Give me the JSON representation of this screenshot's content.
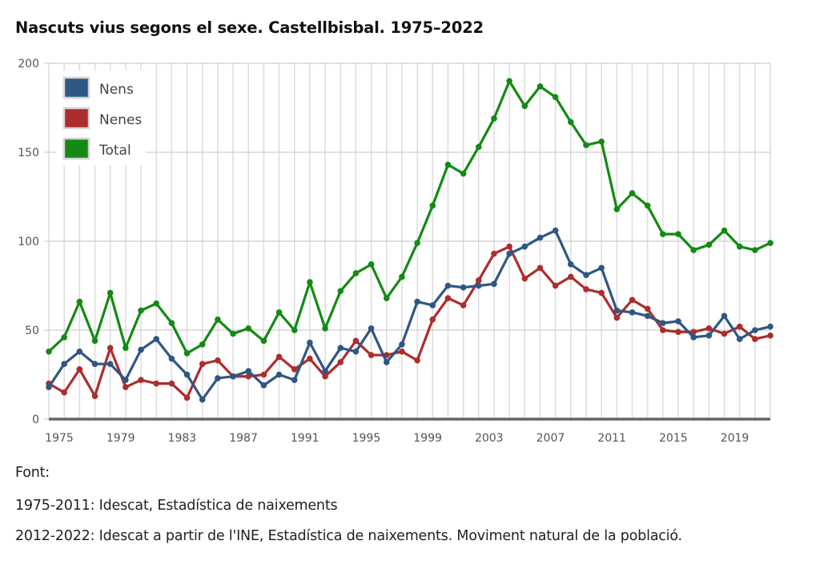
{
  "title": "Nascuts vius segons el sexe. Castellbisbal. 1975–2022",
  "footer": {
    "label": "Font:",
    "source_1": "1975-2011: Idescat, Estadística de naixements",
    "source_2": "2012-2022: Idescat a partir de l'INE, Estadística de naixements. Moviment natural de la població."
  },
  "chart_data": {
    "type": "line",
    "title": "Nascuts vius segons el sexe. Castellbisbal. 1975–2022",
    "xlabel": "",
    "ylabel": "",
    "ylim": [
      0,
      200
    ],
    "yticks": [
      0,
      50,
      100,
      150,
      200
    ],
    "xticks": [
      "1975",
      "1979",
      "1983",
      "1987",
      "1991",
      "1995",
      "1999",
      "2003",
      "2007",
      "2011",
      "2015",
      "2019"
    ],
    "grid": true,
    "legend_position": "top-left",
    "x": [
      1975,
      1976,
      1977,
      1978,
      1979,
      1980,
      1981,
      1982,
      1983,
      1984,
      1985,
      1986,
      1987,
      1988,
      1989,
      1990,
      1991,
      1992,
      1993,
      1994,
      1995,
      1996,
      1997,
      1998,
      1999,
      2000,
      2001,
      2002,
      2003,
      2004,
      2005,
      2006,
      2007,
      2008,
      2009,
      2010,
      2011,
      2012,
      2013,
      2014,
      2015,
      2016,
      2017,
      2018,
      2019,
      2020,
      2021,
      2022
    ],
    "series": [
      {
        "name": "Nens",
        "color": "#2f5784",
        "values": [
          18,
          31,
          38,
          31,
          31,
          22,
          39,
          45,
          34,
          25,
          11,
          23,
          24,
          27,
          19,
          25,
          22,
          43,
          27,
          40,
          38,
          51,
          32,
          42,
          66,
          64,
          75,
          74,
          75,
          76,
          93,
          97,
          102,
          106,
          87,
          81,
          85,
          61,
          60,
          58,
          54,
          55,
          46,
          47,
          58,
          45,
          50,
          52
        ]
      },
      {
        "name": "Nenes",
        "color": "#ad2d2d",
        "values": [
          20,
          15,
          28,
          13,
          40,
          18,
          22,
          20,
          20,
          12,
          31,
          33,
          24,
          24,
          25,
          35,
          28,
          34,
          24,
          32,
          44,
          36,
          36,
          38,
          33,
          56,
          68,
          64,
          78,
          93,
          97,
          79,
          85,
          75,
          80,
          73,
          71,
          57,
          67,
          62,
          50,
          49,
          49,
          51,
          48,
          52,
          45,
          47
        ]
      },
      {
        "name": "Total",
        "color": "#138a13",
        "values": [
          38,
          46,
          66,
          44,
          71,
          40,
          61,
          65,
          54,
          37,
          42,
          56,
          48,
          51,
          44,
          60,
          50,
          77,
          51,
          72,
          82,
          87,
          68,
          80,
          99,
          120,
          143,
          138,
          153,
          169,
          190,
          176,
          187,
          181,
          167,
          154,
          156,
          118,
          127,
          120,
          104,
          104,
          95,
          98,
          106,
          97,
          95,
          99
        ]
      }
    ]
  }
}
